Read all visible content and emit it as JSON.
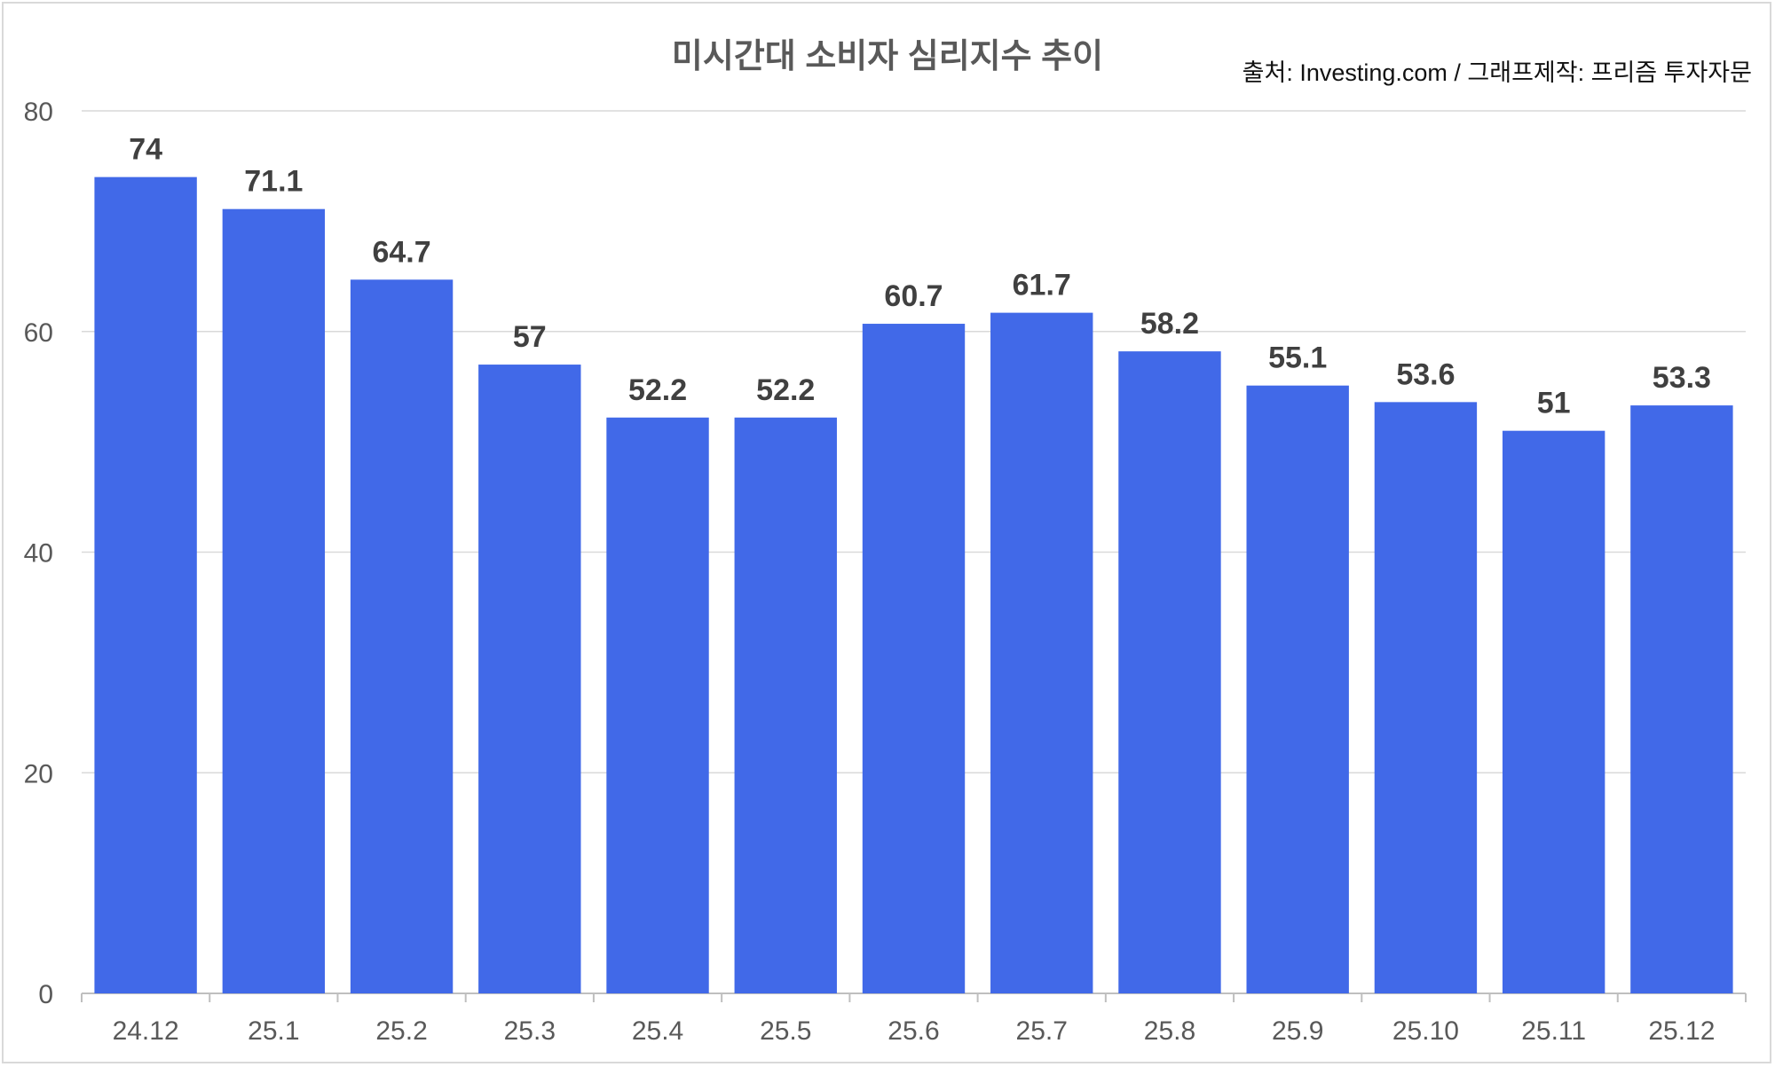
{
  "chart_data": {
    "type": "bar",
    "title": "미시간대 소비자 심리지수 추이",
    "source_note": "출처: Investing.com / 그래프제작: 프리즘 투자자문",
    "categories": [
      "24.12",
      "25.1",
      "25.2",
      "25.3",
      "25.4",
      "25.5",
      "25.6",
      "25.7",
      "25.8",
      "25.9",
      "25.10",
      "25.11",
      "25.12"
    ],
    "values": [
      74,
      71.1,
      64.7,
      57,
      52.2,
      52.2,
      60.7,
      61.7,
      58.2,
      55.1,
      53.6,
      51,
      53.3
    ],
    "data_labels": [
      "74",
      "71.1",
      "64.7",
      "57",
      "52.2",
      "52.2",
      "60.7",
      "61.7",
      "58.2",
      "55.1",
      "53.6",
      "51",
      "53.3"
    ],
    "xlabel": "",
    "ylabel": "",
    "ylim": [
      0,
      80
    ],
    "yticks": [
      "0",
      "20",
      "40",
      "60",
      "80"
    ],
    "grid": true,
    "bar_color": "#4169E8"
  }
}
